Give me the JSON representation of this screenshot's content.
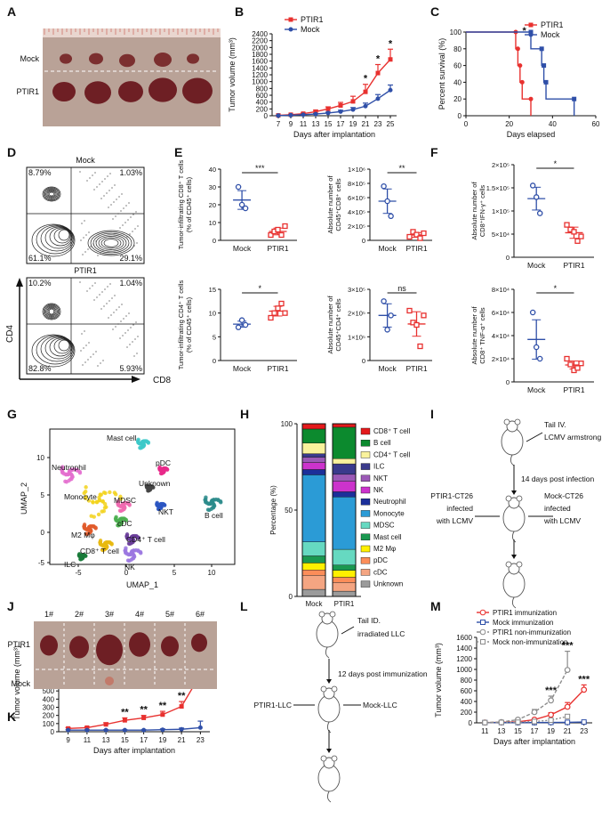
{
  "panel_letters": [
    "A",
    "B",
    "C",
    "D",
    "E",
    "F",
    "G",
    "H",
    "I",
    "J",
    "K",
    "L",
    "M"
  ],
  "colors": {
    "ptir1": "#e8312f",
    "mock": "#2f4fa8",
    "grey": "#8c8c8c",
    "dark": "#111111"
  },
  "panelA": {
    "row_mock": "Mock",
    "row_ptir1": "PTIR1"
  },
  "panelD": {
    "top_title": "Mock",
    "bottom_title": "PTIR1",
    "top_q": [
      "8.79%",
      "1.03%",
      "61.1%",
      "29.1%"
    ],
    "bottom_q": [
      "10.2%",
      "1.04%",
      "82.8%",
      "5.93%"
    ],
    "ylabel": "CD4",
    "xlabel": "CD8"
  },
  "panelE": {
    "titles": [
      "Tumor-infiltrating CD8⁺ T cells",
      "(% of CD45⁺ cells)",
      "Absolute number of",
      "CD45⁺CD8⁺ cells",
      "Tumor-infiltrating CD4⁺ T cells",
      "(% of CD45⁺ cells)",
      "Absolute number of",
      "CD45⁺CD4⁺ cells"
    ],
    "sig": [
      "***",
      "**",
      "*",
      "ns"
    ]
  },
  "panelF": {
    "titles": [
      "Absolute number of",
      "CD8⁺IFN-γ⁺ cells",
      "Absolute number of",
      "CD8⁺ TNF-α⁺ cells"
    ],
    "sig": [
      "*",
      "*"
    ]
  },
  "panelG": {
    "xlabel": "UMAP_1",
    "ylabel": "UMAP_2",
    "clusters": [
      "Mast cell",
      "pDC",
      "Neutrophil",
      "Unknown",
      "Monocyte",
      "MDSC",
      "NKT",
      "B cell",
      "cDC",
      "M2 Mφ",
      "CD4⁺ T cell",
      "CD8⁺ T cell",
      "ILC",
      "NK"
    ]
  },
  "panelI": {
    "top": [
      "Tail IV.",
      "LCMV armstrong"
    ],
    "mid": "14 days post infection",
    "left": [
      "PTIR1-CT26",
      "infected",
      "with LCMV"
    ],
    "right": [
      "Mock-CT26",
      "infected",
      "with LCMV"
    ]
  },
  "panelJ": {
    "numbers": [
      "1#",
      "2#",
      "3#",
      "4#",
      "5#",
      "6#"
    ],
    "row_ptir1": "PTIR1",
    "row_mock": "Mock"
  },
  "panelL": {
    "top": [
      "Tail ID.",
      "irradiated LLC"
    ],
    "mid": "12 days post immunization",
    "left": "PTIR1-LLC",
    "right": "Mock-LLC"
  },
  "chart_data": [
    {
      "id": "B",
      "type": "line",
      "ylabel": "Tumor volume (mm³)",
      "xlabel": "Days after implantation",
      "x": [
        7,
        9,
        11,
        13,
        15,
        17,
        19,
        21,
        23,
        25
      ],
      "ylim": [
        0,
        2400
      ],
      "yticks": [
        0,
        200,
        400,
        600,
        800,
        1000,
        1200,
        1400,
        1600,
        1800,
        2000,
        2200,
        2400
      ],
      "series": [
        {
          "name": "PTIR1",
          "color": "#e8312f",
          "values": [
            10,
            30,
            60,
            120,
            200,
            300,
            420,
            700,
            1250,
            1650
          ],
          "err": [
            5,
            10,
            20,
            40,
            60,
            90,
            150,
            220,
            250,
            300
          ]
        },
        {
          "name": "Mock",
          "color": "#2f4fa8",
          "values": [
            5,
            15,
            30,
            50,
            80,
            120,
            180,
            280,
            500,
            750
          ],
          "err": [
            3,
            5,
            10,
            15,
            25,
            40,
            60,
            90,
            120,
            150
          ]
        }
      ],
      "annotations": [
        {
          "x": 21,
          "text": "*"
        },
        {
          "x": 23,
          "text": "*"
        },
        {
          "x": 25,
          "text": "*"
        }
      ],
      "legend": "top-left"
    },
    {
      "id": "C",
      "type": "line",
      "ylabel": "Percent survival (%)",
      "xlabel": "Days elapsed",
      "xlim": [
        0,
        60
      ],
      "xticks": [
        0,
        20,
        40,
        60
      ],
      "ylim": [
        0,
        100
      ],
      "yticks": [
        0,
        20,
        40,
        60,
        80,
        100
      ],
      "series": [
        {
          "name": "PTIR1",
          "color": "#e8312f",
          "steps": [
            [
              0,
              100
            ],
            [
              23,
              100
            ],
            [
              23,
              80
            ],
            [
              24,
              80
            ],
            [
              24,
              60
            ],
            [
              25,
              60
            ],
            [
              25,
              40
            ],
            [
              26,
              40
            ],
            [
              26,
              20
            ],
            [
              30,
              20
            ],
            [
              30,
              0
            ]
          ]
        },
        {
          "name": "Mock",
          "color": "#2f4fa8",
          "steps": [
            [
              0,
              100
            ],
            [
              30,
              100
            ],
            [
              30,
              80
            ],
            [
              35,
              80
            ],
            [
              35,
              60
            ],
            [
              36,
              60
            ],
            [
              36,
              40
            ],
            [
              37,
              40
            ],
            [
              37,
              20
            ],
            [
              50,
              20
            ],
            [
              50,
              0
            ]
          ]
        }
      ],
      "annotations": [
        {
          "x": 27,
          "text": "*"
        }
      ],
      "legend": "top-right"
    },
    {
      "id": "E1",
      "type": "scatter",
      "categories": [
        "Mock",
        "PTIR1"
      ],
      "ylim": [
        0,
        40
      ],
      "yticks": [
        "0",
        "10",
        "20",
        "30",
        "40"
      ],
      "values": [
        [
          30,
          20,
          18
        ],
        [
          3,
          5,
          6,
          3,
          8
        ]
      ]
    },
    {
      "id": "E2",
      "type": "scatter",
      "categories": [
        "Mock",
        "PTIR1"
      ],
      "ylim": [
        0,
        10
      ],
      "yticks": [
        "0",
        "2×10⁵",
        "4×10⁵",
        "6×10⁵",
        "8×10⁵",
        "1×10⁶"
      ],
      "values": [
        [
          7.6,
          5.5,
          3.4
        ],
        [
          0.5,
          1.2,
          0.8,
          0.3,
          1.0
        ]
      ]
    },
    {
      "id": "E3",
      "type": "scatter",
      "categories": [
        "Mock",
        "PTIR1"
      ],
      "ylim": [
        0,
        15
      ],
      "yticks": [
        "0",
        "5",
        "10",
        "15"
      ],
      "values": [
        [
          7,
          8.5,
          7.5
        ],
        [
          9,
          10,
          11,
          12,
          10
        ]
      ]
    },
    {
      "id": "E4",
      "type": "scatter",
      "categories": [
        "Mock",
        "PTIR1"
      ],
      "ylim": [
        0,
        3
      ],
      "yticks": [
        "0",
        "1×10⁵",
        "2×10⁵",
        "3×10⁵"
      ],
      "values": [
        [
          2.5,
          1.3,
          1.9
        ],
        [
          2.1,
          1.6,
          1.5,
          0.6,
          1.9
        ]
      ]
    },
    {
      "id": "F1",
      "type": "scatter",
      "categories": [
        "Mock",
        "PTIR1"
      ],
      "ylim": [
        0,
        20
      ],
      "yticks": [
        "0",
        "5×10⁴",
        "1×10⁵",
        "1.5×10⁵",
        "2×10⁵"
      ],
      "values": [
        [
          15.5,
          13,
          9.5
        ],
        [
          7,
          6,
          5.5,
          3.5,
          4.5
        ]
      ]
    },
    {
      "id": "F2",
      "type": "scatter",
      "categories": [
        "Mock",
        "PTIR1"
      ],
      "ylim": [
        0,
        8
      ],
      "yticks": [
        "0",
        "2×10⁴",
        "4×10⁴",
        "6×10⁴",
        "8×10⁴"
      ],
      "values": [
        [
          6,
          3,
          2
        ],
        [
          2,
          1.5,
          1,
          1.2,
          1.6
        ]
      ]
    },
    {
      "id": "H",
      "type": "bar",
      "ylabel": "Percentage (%)",
      "categories": [
        "Mock",
        "PTIR1"
      ],
      "ylim": [
        0,
        100
      ],
      "yticks": [
        0,
        50,
        100
      ],
      "series": [
        {
          "name": "Unknown",
          "color": "#9b9b9b",
          "values": [
            4,
            3
          ]
        },
        {
          "name": "cDC",
          "color": "#f4a582",
          "values": [
            8,
            5
          ]
        },
        {
          "name": "pDC",
          "color": "#fc8d59",
          "values": [
            3,
            3
          ]
        },
        {
          "name": "M2 Mφ",
          "color": "#fff000",
          "values": [
            4,
            4
          ]
        },
        {
          "name": "Mast cell",
          "color": "#1a9850",
          "values": [
            4,
            3
          ]
        },
        {
          "name": "MDSC",
          "color": "#66d9c1",
          "values": [
            8,
            9
          ]
        },
        {
          "name": "Monocyte",
          "color": "#2b9bd6",
          "values": [
            38,
            30
          ]
        },
        {
          "name": "Neutrophil",
          "color": "#1c2f9a",
          "values": [
            3,
            3
          ]
        },
        {
          "name": "NK",
          "color": "#cc33cc",
          "values": [
            4,
            6
          ]
        },
        {
          "name": "NKT",
          "color": "#9b59b6",
          "values": [
            3,
            4
          ]
        },
        {
          "name": "ILC",
          "color": "#3a3a8c",
          "values": [
            2,
            6
          ]
        },
        {
          "name": "CD4⁺ T cell",
          "color": "#f9f29c",
          "values": [
            6,
            3
          ]
        },
        {
          "name": "B cell",
          "color": "#0c8a2e",
          "values": [
            8,
            18
          ]
        },
        {
          "name": "CD8⁺ T cell",
          "color": "#e41a1c",
          "values": [
            3,
            2
          ]
        }
      ]
    },
    {
      "id": "K",
      "type": "line",
      "ylabel": "Tumor volume (mm³)",
      "xlabel": "Days after implantation",
      "x": [
        9,
        11,
        13,
        15,
        17,
        19,
        21,
        23
      ],
      "ylim": [
        0,
        1200
      ],
      "yticks": [
        0,
        100,
        200,
        300,
        400,
        500,
        600,
        700,
        800,
        900,
        1000,
        1100,
        1200
      ],
      "series": [
        {
          "name": "PTIR1",
          "color": "#e8312f",
          "values": [
            40,
            50,
            90,
            140,
            170,
            210,
            310,
            700
          ],
          "err": [
            10,
            10,
            20,
            30,
            30,
            40,
            60,
            180
          ]
        },
        {
          "name": "Mock",
          "color": "#2f4fa8",
          "values": [
            20,
            20,
            20,
            20,
            20,
            25,
            30,
            50
          ],
          "err": [
            5,
            5,
            5,
            5,
            5,
            10,
            15,
            80
          ]
        }
      ],
      "annotations": [
        {
          "x": 15,
          "text": "**"
        },
        {
          "x": 17,
          "text": "**"
        },
        {
          "x": 19,
          "text": "**"
        },
        {
          "x": 21,
          "text": "**"
        },
        {
          "x": 23,
          "text": "**"
        }
      ],
      "legend": "top-left"
    },
    {
      "id": "M",
      "type": "line",
      "ylabel": "Tumor volume (mm³)",
      "xlabel": "Days after implantation",
      "x": [
        11,
        13,
        15,
        17,
        19,
        21,
        23
      ],
      "ylim": [
        0,
        1600
      ],
      "yticks": [
        0,
        200,
        400,
        600,
        800,
        1000,
        1200,
        1400,
        1600
      ],
      "series": [
        {
          "name": "PTIR1 immunization",
          "color": "#e8312f",
          "values": [
            5,
            10,
            20,
            60,
            150,
            300,
            620
          ],
          "err": [
            2,
            3,
            8,
            20,
            40,
            80,
            90
          ]
        },
        {
          "name": "Mock immunization",
          "color": "#2f4fa8",
          "values": [
            5,
            5,
            5,
            5,
            8,
            10,
            15
          ],
          "err": [
            1,
            1,
            1,
            1,
            2,
            3,
            5
          ]
        },
        {
          "name": "PTIR1 non-immunization",
          "color": "#8c8c8c",
          "values": [
            5,
            15,
            60,
            200,
            420,
            990,
            null
          ],
          "err": [
            2,
            5,
            20,
            50,
            80,
            350,
            0
          ]
        },
        {
          "name": "Mock non-immunization",
          "color": "#8c8c8c",
          "values": [
            5,
            8,
            12,
            25,
            50,
            120,
            null
          ],
          "err": [
            1,
            2,
            4,
            8,
            10,
            30,
            0
          ]
        }
      ],
      "annotations": [
        {
          "x": 19,
          "text": "***"
        },
        {
          "x": 21,
          "text": "***"
        },
        {
          "x": 23,
          "text": "***"
        }
      ],
      "legend": "top-left"
    }
  ]
}
